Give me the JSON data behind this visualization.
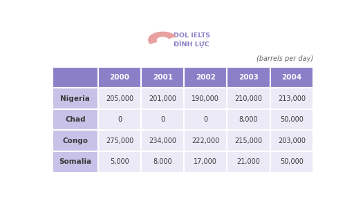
{
  "title_unit": "(barrels per day)",
  "columns": [
    "",
    "2000",
    "2001",
    "2002",
    "2003",
    "2004"
  ],
  "rows": [
    [
      "Nigeria",
      "205,000",
      "201,000",
      "190,000",
      "210,000",
      "213,000"
    ],
    [
      "Chad",
      "0",
      "0",
      "0",
      "8,000",
      "50,000"
    ],
    [
      "Congo",
      "275,000",
      "234,000",
      "222,000",
      "215,000",
      "203,000"
    ],
    [
      "Somalia",
      "5,000",
      "8,000",
      "17,000",
      "21,000",
      "50,000"
    ]
  ],
  "header_bg": "#8B80C8",
  "header_text": "#ffffff",
  "row_country_bg": "#C8C2E8",
  "row_country_text": "#3a3a3a",
  "row_data_bg": "#EDEAF7",
  "row_data_text": "#3a3a3a",
  "border_color": "#ffffff",
  "unit_text_color": "#666666",
  "background_color": "#ffffff",
  "logo_text1": "DOL IELTS",
  "logo_text2": "ĐÌNH LỰC",
  "logo_text_color": "#8B80C8",
  "logo_shape_color": "#E8A0A0"
}
